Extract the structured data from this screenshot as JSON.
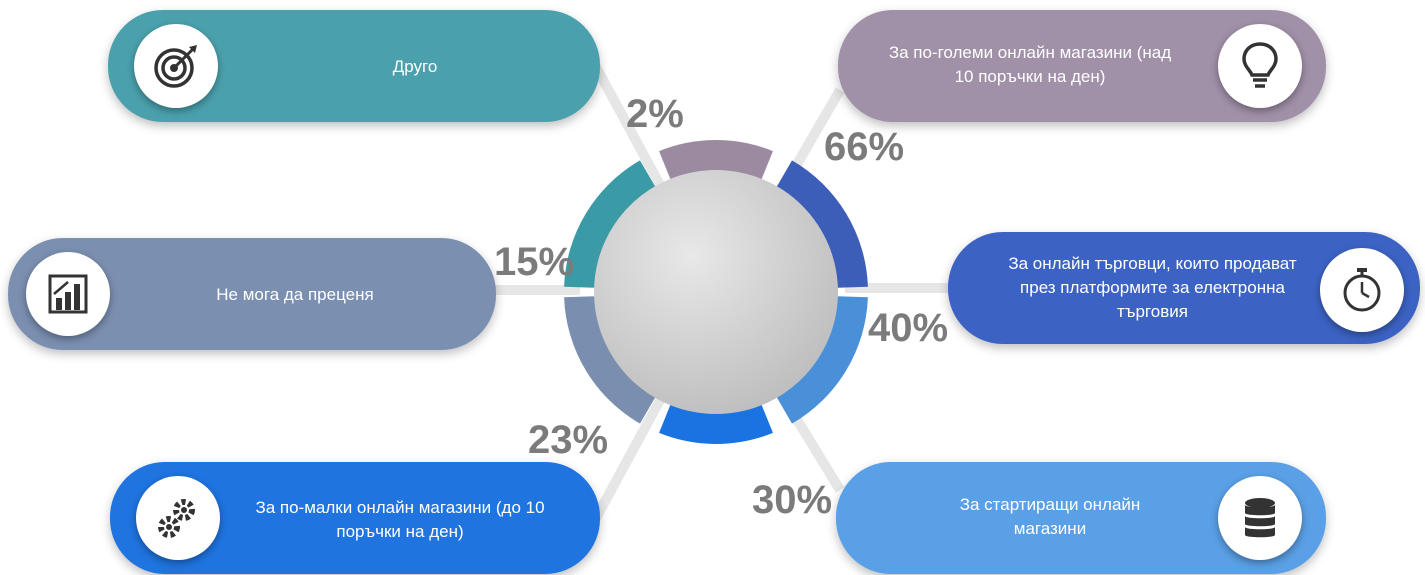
{
  "chart_data": {
    "type": "pie",
    "categories": [
      "Друго",
      "За по-големи онлайн магазини (над 10 поръчки на ден)",
      "За онлайн търговци, които продават през платформите за електронна търговия",
      "За стартиращи онлайн магазини",
      "За по-малки онлайн магазини (до 10 поръчки на ден)",
      "Не мога да преценя"
    ],
    "values": [
      2,
      66,
      40,
      30,
      23,
      15
    ],
    "value_labels": [
      "2%",
      "66%",
      "40%",
      "30%",
      "23%",
      "15%"
    ],
    "colors": [
      "#9c8ba0",
      "#3c5db8",
      "#4a90d9",
      "#1a73e0",
      "#7a8fb0",
      "#3a9aa6"
    ]
  },
  "items": [
    {
      "label": "Друго",
      "value": "2%",
      "color": "#4aa1ad",
      "icon": "target-icon"
    },
    {
      "label": "За по-големи онлайн магазини (над 10 поръчки на ден)",
      "value": "66%",
      "color": "#a090a8",
      "icon": "lightbulb-icon"
    },
    {
      "label": "Не мога да преценя",
      "value": "15%",
      "color": "#7b8fb1",
      "icon": "bar-chart-icon"
    },
    {
      "label": "За онлайн търговци, които продават през платформите за електронна търговия",
      "value": "40%",
      "color": "#3c63c4",
      "icon": "stopwatch-icon"
    },
    {
      "label": "За по-малки онлайн магазини (до 10 поръчки на ден)",
      "value": "23%",
      "color": "#1f74e0",
      "icon": "gears-icon"
    },
    {
      "label": "За стартиращи онлайн магазини",
      "value": "30%",
      "color": "#5aa0e6",
      "icon": "database-icon"
    }
  ]
}
